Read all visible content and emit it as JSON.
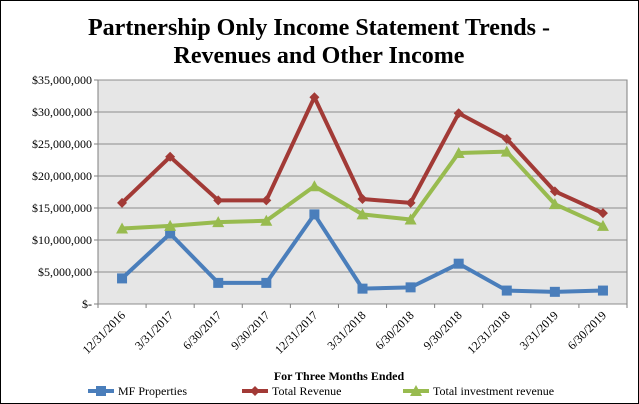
{
  "chart_data": {
    "type": "line",
    "title_lines": [
      "Partnership Only Income Statement Trends -",
      "Revenues and Other Income"
    ],
    "xlabel": "For Three Months  Ended",
    "ylabel": "",
    "categories": [
      "12/31/2016",
      "3/31/2017",
      "6/30/2017",
      "9/30/2017",
      "12/31/2017",
      "3/31/2018",
      "6/30/2018",
      "9/30/2018",
      "12/31/2018",
      "3/31/2019",
      "6/30/2019"
    ],
    "ylim": [
      0,
      35000000
    ],
    "y_ticks": [
      {
        "value": 0,
        "label": "$-"
      },
      {
        "value": 5000000,
        "label": "$5,000,000"
      },
      {
        "value": 10000000,
        "label": "$10,000,000"
      },
      {
        "value": 15000000,
        "label": "$15,000,000"
      },
      {
        "value": 20000000,
        "label": "$20,000,000"
      },
      {
        "value": 25000000,
        "label": "$25,000,000"
      },
      {
        "value": 30000000,
        "label": "$30,000,000"
      },
      {
        "value": 35000000,
        "label": "$35,000,000"
      }
    ],
    "grid": true,
    "legend_position": "bottom",
    "plot_background": "#e6e6e6",
    "series": [
      {
        "name": "MF Properties",
        "color": "#4a7ebb",
        "marker": "square",
        "values": [
          4000000,
          11000000,
          3300000,
          3300000,
          14000000,
          2400000,
          2600000,
          6300000,
          2100000,
          1900000,
          2100000
        ]
      },
      {
        "name": "Total Revenue",
        "color": "#a23a36",
        "marker": "diamond",
        "values": [
          15800000,
          23000000,
          16200000,
          16200000,
          32300000,
          16400000,
          15800000,
          29800000,
          25800000,
          17600000,
          14200000
        ]
      },
      {
        "name": "Total investment revenue",
        "color": "#98bb4f",
        "marker": "triangle",
        "values": [
          11800000,
          12200000,
          12800000,
          13000000,
          18400000,
          14000000,
          13200000,
          23600000,
          23800000,
          15600000,
          12200000
        ]
      }
    ]
  }
}
